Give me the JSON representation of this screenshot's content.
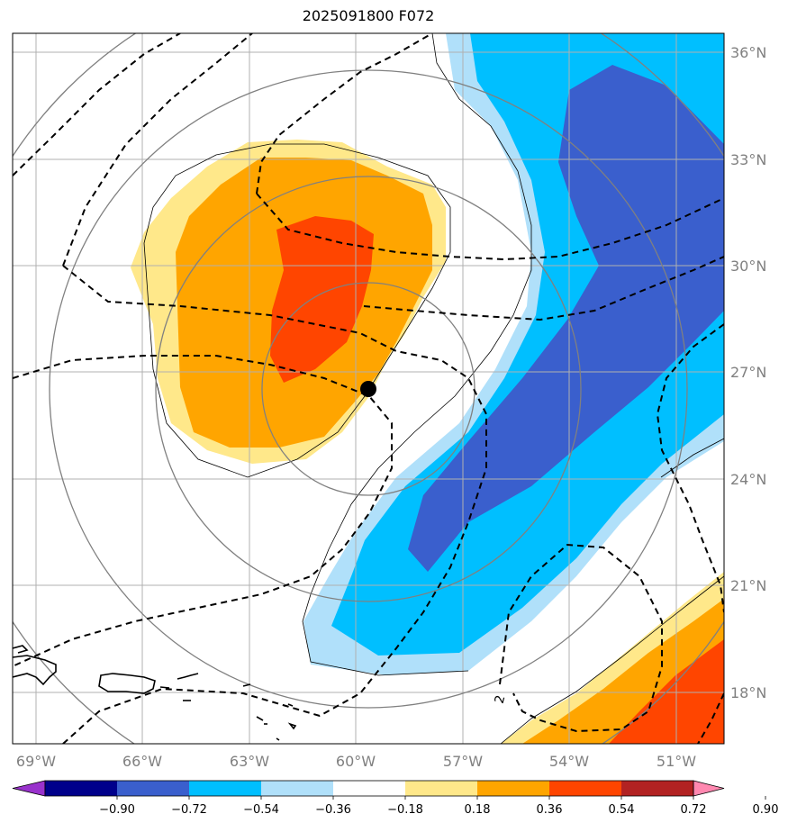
{
  "title": "2025091800 F072",
  "longitude_labels": [
    "69°W",
    "66°W",
    "63°W",
    "60°W",
    "57°W",
    "54°W",
    "51°W"
  ],
  "latitude_labels": [
    "36°N",
    "33°N",
    "30°N",
    "27°N",
    "24°N",
    "21°N",
    "18°N"
  ],
  "contour_label": "2",
  "colorbar": {
    "ticks": [
      "−0.90",
      "−0.72",
      "−0.54",
      "−0.36",
      "−0.18",
      "0.18",
      "0.36",
      "0.54",
      "0.72",
      "0.90"
    ],
    "colors": [
      "#9932cc",
      "#00008b",
      "#3a5fcd",
      "#00bfff",
      "#b0e0fa",
      "#ffffff",
      "#ffe88a",
      "#ffa500",
      "#ff4500",
      "#b22222",
      "#ff88b0"
    ]
  },
  "map_extent": {
    "lon_min": -69.6,
    "lon_max": -49.6,
    "lat_min": 16.5,
    "lat_max": 36.5
  },
  "storm_center": {
    "lon": -59.7,
    "lat": 26.5
  }
}
